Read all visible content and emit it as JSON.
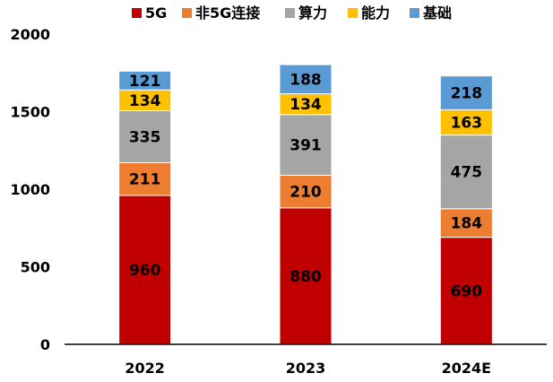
{
  "chart_data": {
    "type": "bar",
    "stacked": true,
    "title": "",
    "xlabel": "",
    "ylabel": "",
    "ylim": [
      0,
      2000
    ],
    "yticks": [
      0,
      500,
      1000,
      1500,
      2000
    ],
    "grid": false,
    "legend_position": "top",
    "categories": [
      "2022",
      "2023",
      "2024E"
    ],
    "series": [
      {
        "name": "5G",
        "color": "#C00000",
        "values": [
          960,
          880,
          690
        ]
      },
      {
        "name": "非5G连接",
        "color": "#ED7D31",
        "values": [
          211,
          210,
          184
        ]
      },
      {
        "name": "算力",
        "color": "#A5A5A5",
        "values": [
          335,
          391,
          475
        ]
      },
      {
        "name": "能力",
        "color": "#FFC000",
        "values": [
          134,
          134,
          163
        ]
      },
      {
        "name": "基础",
        "color": "#5B9BD5",
        "values": [
          121,
          188,
          218
        ]
      }
    ]
  }
}
